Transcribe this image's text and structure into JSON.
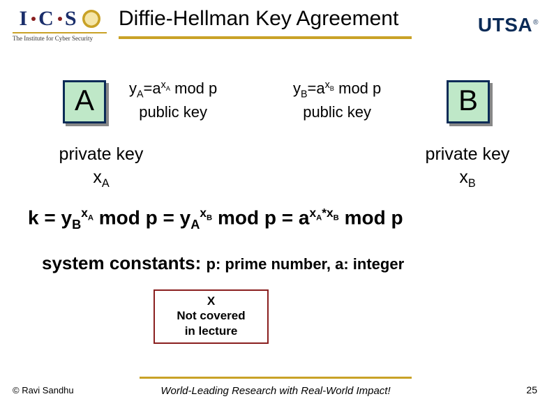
{
  "header": {
    "title": "Diffie-Hellman Key Agreement",
    "ics_letters": [
      "I",
      "C",
      "S"
    ],
    "ics_sub": "The Institute for Cyber Security",
    "utsa": "UTSA",
    "title_underline_color": "#c9a227"
  },
  "boxes": {
    "a_label": "A",
    "b_label": "B",
    "fill_color": "#bfe8c8",
    "border_color": "#0b2b57",
    "shadow_color": "#888888"
  },
  "public_keys": {
    "a_line1_html": "y<span class='subsc'>A</span>=a<span class='supsc'>x<span class='subsc'>A</span></span> mod p",
    "a_line2": "public key",
    "b_line1_html": "y<span class='subsc'>B</span>=a<span class='supsc'>x<span class='subsc'>B</span></span> mod p",
    "b_line2": "public key"
  },
  "private_keys": {
    "a_line1": "private key",
    "a_line2_html": "x<span class='subsc'>A</span>",
    "b_line1": "private key",
    "b_line2_html": "x<span class='subsc'>B</span>"
  },
  "k_formula_html": "k = y<span class='subsc'>B</span><span class='supsc'>x<span class='subsc'>A</span></span> mod p = y<span class='subsc'>A</span><span class='supsc'>x<span class='subsc'>B</span></span> mod p = a<span class='supsc'>x<span class='subsc'>A</span>*x<span class='subsc'>B</span></span> mod p",
  "system_constants": {
    "label": "system constants:",
    "detail": "p: prime number, a: integer"
  },
  "xbox": {
    "line1": "X",
    "line2": "Not covered",
    "line3": "in lecture",
    "border_color": "#8a1f1f"
  },
  "footer": {
    "copyright": "© Ravi  Sandhu",
    "tagline": "World-Leading Research with Real-World Impact!",
    "page": "25",
    "rule_color": "#c9a227"
  },
  "colors": {
    "navy": "#0b2b57",
    "gold": "#c9a227",
    "maroon": "#8a1f1f",
    "box_green": "#bfe8c8",
    "background": "#ffffff"
  }
}
